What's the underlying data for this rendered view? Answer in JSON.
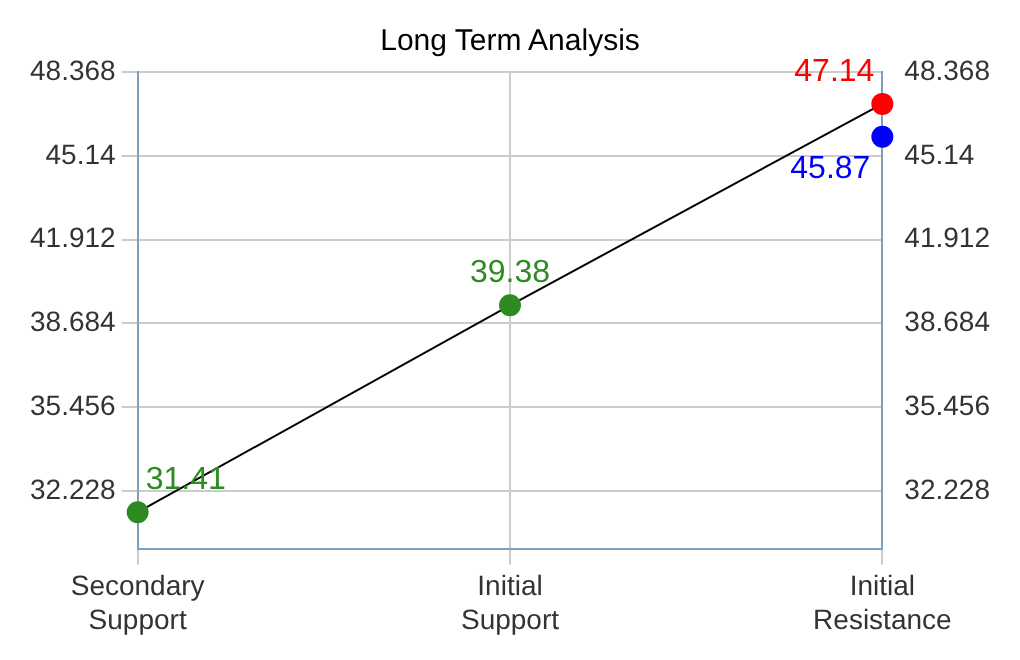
{
  "chart_data": {
    "type": "line",
    "title": "Long Term Analysis",
    "categories": [
      "Secondary Support",
      "Initial Support",
      "Initial Resistance"
    ],
    "series": [
      {
        "type": "line",
        "color": "#000000",
        "colors": [
          "#2e8b22",
          "#2e8b22",
          "#ff0000"
        ],
        "values": [
          31.41,
          39.38,
          47.14
        ]
      },
      {
        "type": "scatter",
        "color": "#0000ff",
        "x": [
          "Initial Resistance"
        ],
        "values": [
          45.87
        ]
      }
    ],
    "ylim": [
      30.0,
      48.368
    ],
    "yticks": [
      32.228,
      35.456,
      38.684,
      41.912,
      45.14,
      48.368
    ],
    "y2lim": [
      30.0,
      48.368
    ],
    "y2ticks": [
      32.228,
      35.456,
      38.684,
      41.912,
      45.14,
      48.368
    ],
    "grid": true,
    "legend": false,
    "marker": "circle",
    "data_labels": true
  }
}
